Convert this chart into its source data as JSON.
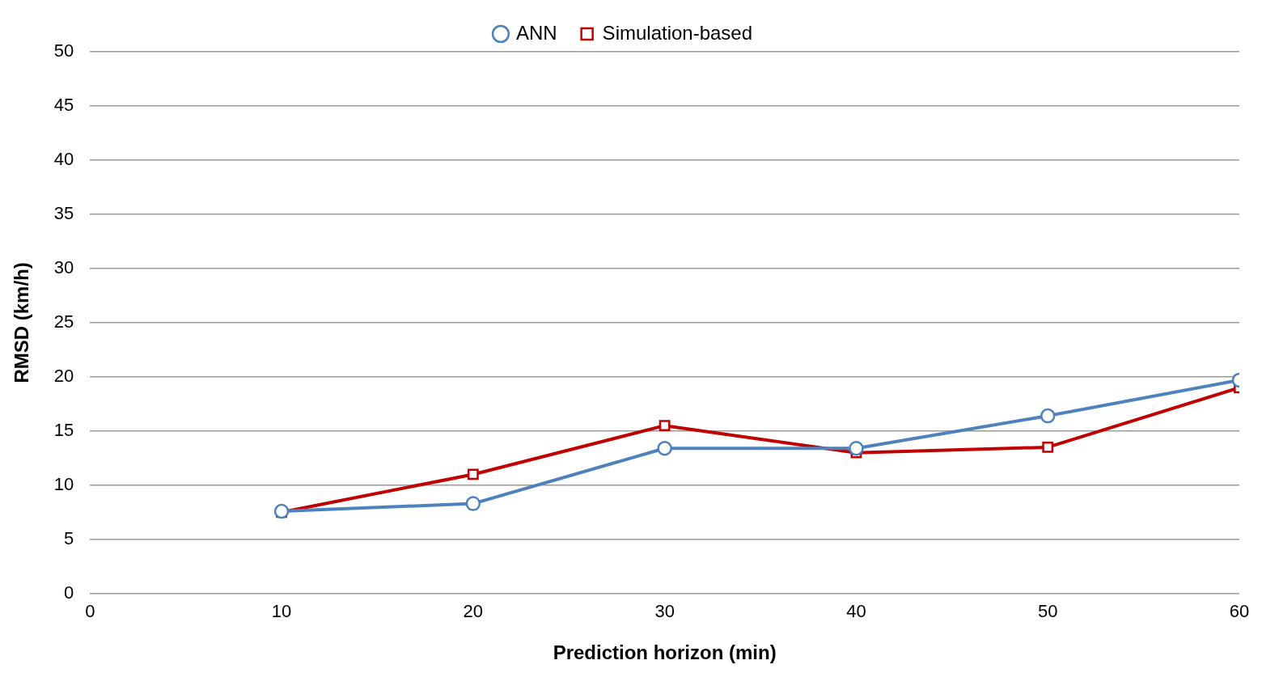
{
  "chart_data": {
    "type": "line",
    "xlabel": "Prediction horizon (min)",
    "ylabel": "RMSD (km/h)",
    "x": [
      10,
      20,
      30,
      40,
      50,
      60
    ],
    "series": [
      {
        "name": "Simulation-based",
        "color": "#c00000",
        "marker": "square",
        "values": [
          7.5,
          11.0,
          15.5,
          13.0,
          13.5,
          19.0
        ]
      },
      {
        "name": "ANN",
        "color": "#4f81bd",
        "marker": "circle",
        "values": [
          7.6,
          8.3,
          13.4,
          13.4,
          16.4,
          19.7
        ]
      }
    ],
    "xlim": [
      0,
      60
    ],
    "xticks": [
      0,
      10,
      20,
      30,
      40,
      50,
      60
    ],
    "ylim": [
      0,
      50
    ],
    "yticks": [
      0,
      5,
      10,
      15,
      20,
      25,
      30,
      35,
      40,
      45,
      50
    ],
    "grid": "y",
    "legend": "top",
    "line_style": "solid"
  }
}
